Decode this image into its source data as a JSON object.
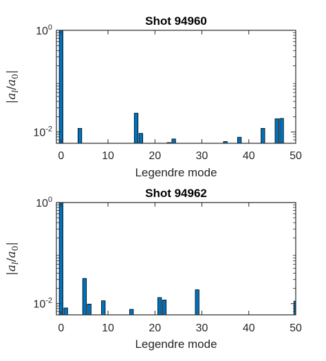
{
  "chart_data": [
    {
      "type": "bar",
      "title": "Shot 94960",
      "xlabel": "Legendre mode",
      "ylabel": "|a_l/a_0|",
      "ylabel_parts": {
        "open": "|",
        "a1": "a",
        "sub1": "l",
        "slash": "/",
        "a2": "a",
        "sub2": "0",
        "close": "|"
      },
      "yscale": "log",
      "xlim": [
        -1,
        50
      ],
      "ylim": [
        0.006,
        1
      ],
      "xticks": [
        0,
        10,
        20,
        30,
        40,
        50
      ],
      "xtick_labels": [
        "0",
        "10",
        "20",
        "30",
        "40",
        "50"
      ],
      "yticks": [
        {
          "value": 1,
          "base": "10",
          "exp": "0"
        },
        {
          "value": 0.01,
          "base": "10",
          "exp": "-2"
        }
      ],
      "bar_color": "#0072BD",
      "x": [
        0,
        4,
        16,
        17,
        23,
        24,
        35,
        38,
        43,
        46,
        47
      ],
      "values": [
        1.0,
        0.0118,
        0.0235,
        0.0094,
        0.0062,
        0.0073,
        0.0065,
        0.0079,
        0.0118,
        0.0182,
        0.0185
      ]
    },
    {
      "type": "bar",
      "title": "Shot 94962",
      "xlabel": "Legendre mode",
      "ylabel": "|a_l/a_0|",
      "ylabel_parts": {
        "open": "|",
        "a1": "a",
        "sub1": "l",
        "slash": "/",
        "a2": "a",
        "sub2": "0",
        "close": "|"
      },
      "yscale": "log",
      "xlim": [
        -1,
        50
      ],
      "ylim": [
        0.006,
        1
      ],
      "xticks": [
        0,
        10,
        20,
        30,
        40,
        50
      ],
      "xtick_labels": [
        "0",
        "10",
        "20",
        "30",
        "40",
        "50"
      ],
      "yticks": [
        {
          "value": 1,
          "base": "10",
          "exp": "0"
        },
        {
          "value": 0.01,
          "base": "10",
          "exp": "-2"
        }
      ],
      "bar_color": "#0072BD",
      "x": [
        0,
        1,
        5,
        6,
        9,
        15,
        21,
        22,
        29,
        50
      ],
      "values": [
        1.0,
        0.0082,
        0.0315,
        0.0098,
        0.0114,
        0.0077,
        0.0132,
        0.0118,
        0.0188,
        0.0112
      ]
    }
  ]
}
